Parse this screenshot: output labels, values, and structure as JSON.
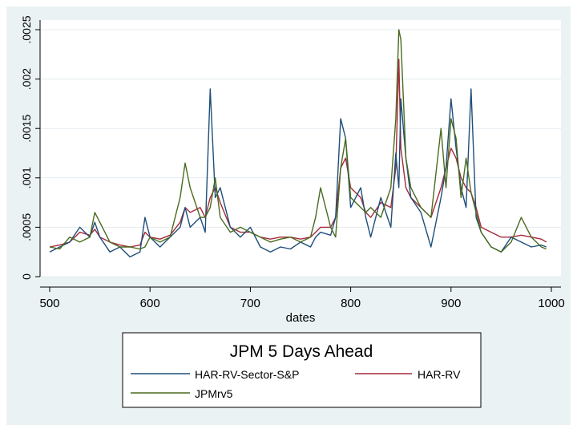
{
  "chart_data": {
    "type": "line",
    "title": "JPM 5 Days Ahead",
    "xlabel": "dates",
    "ylabel": "",
    "xlim": [
      500,
      1000
    ],
    "ylim": [
      0,
      0.0025
    ],
    "x_ticks": [
      500,
      600,
      700,
      800,
      900,
      1000
    ],
    "x_tick_labels": [
      "500",
      "600",
      "700",
      "800",
      "900",
      "1000"
    ],
    "y_ticks": [
      0,
      0.0005,
      0.001,
      0.0015,
      0.002,
      0.0025
    ],
    "y_tick_labels": [
      "0",
      ".0005",
      ".001",
      ".0015",
      ".002",
      ".0025"
    ],
    "grid": true,
    "legend_position": "bottom",
    "x": [
      500,
      510,
      520,
      530,
      540,
      545,
      550,
      560,
      570,
      580,
      590,
      595,
      600,
      610,
      620,
      630,
      635,
      640,
      650,
      655,
      660,
      665,
      670,
      680,
      690,
      700,
      710,
      720,
      730,
      740,
      750,
      760,
      765,
      770,
      780,
      785,
      790,
      795,
      800,
      810,
      815,
      820,
      830,
      840,
      845,
      848,
      850,
      855,
      860,
      870,
      880,
      890,
      895,
      900,
      905,
      910,
      915,
      920,
      925,
      930,
      940,
      950,
      960,
      970,
      980,
      990,
      995
    ],
    "series": [
      {
        "name": "HAR-RV-Sector-S&P",
        "color": "#1f4e79",
        "values": [
          0.00025,
          0.0003,
          0.00035,
          0.0005,
          0.0004,
          0.00055,
          0.0004,
          0.00025,
          0.0003,
          0.0002,
          0.00025,
          0.0006,
          0.0004,
          0.0003,
          0.0004,
          0.0005,
          0.0007,
          0.0005,
          0.0006,
          0.00045,
          0.0019,
          0.0008,
          0.0009,
          0.0005,
          0.0004,
          0.0005,
          0.0003,
          0.00025,
          0.0003,
          0.00028,
          0.00035,
          0.0003,
          0.0004,
          0.00045,
          0.00042,
          0.0006,
          0.0016,
          0.0014,
          0.0007,
          0.0009,
          0.0006,
          0.0004,
          0.0008,
          0.0005,
          0.00125,
          0.0009,
          0.0018,
          0.0012,
          0.0008,
          0.00065,
          0.0003,
          0.0008,
          0.0011,
          0.0018,
          0.0013,
          0.0009,
          0.0007,
          0.0019,
          0.0006,
          0.00045,
          0.0003,
          0.00025,
          0.0004,
          0.00035,
          0.0003,
          0.00032,
          0.0003
        ]
      },
      {
        "name": "HAR-RV",
        "color": "#a52a3a",
        "values": [
          0.0003,
          0.00032,
          0.00035,
          0.00045,
          0.00042,
          0.00048,
          0.0004,
          0.00035,
          0.00032,
          0.0003,
          0.00032,
          0.00045,
          0.0004,
          0.00038,
          0.00042,
          0.00055,
          0.0007,
          0.00065,
          0.0007,
          0.0006,
          0.0008,
          0.0009,
          0.00075,
          0.0005,
          0.00045,
          0.00045,
          0.0004,
          0.00038,
          0.0004,
          0.0004,
          0.00038,
          0.0004,
          0.00045,
          0.0005,
          0.0005,
          0.0006,
          0.0011,
          0.0012,
          0.0009,
          0.0008,
          0.00065,
          0.0006,
          0.00075,
          0.0007,
          0.0011,
          0.0022,
          0.0013,
          0.0009,
          0.0008,
          0.0007,
          0.0006,
          0.0009,
          0.0011,
          0.0013,
          0.0012,
          0.001,
          0.0009,
          0.00085,
          0.0007,
          0.0005,
          0.00045,
          0.0004,
          0.0004,
          0.00042,
          0.0004,
          0.00038,
          0.00035
        ]
      },
      {
        "name": "JPMrv5",
        "color": "#4a6b1f",
        "values": [
          0.0003,
          0.00028,
          0.0004,
          0.00035,
          0.0004,
          0.00065,
          0.00055,
          0.00035,
          0.0003,
          0.0003,
          0.00028,
          0.0003,
          0.0004,
          0.00035,
          0.0004,
          0.0008,
          0.00115,
          0.0009,
          0.0006,
          0.0006,
          0.0007,
          0.001,
          0.0006,
          0.00045,
          0.0005,
          0.00045,
          0.0004,
          0.00035,
          0.00038,
          0.0004,
          0.00035,
          0.0004,
          0.0006,
          0.0009,
          0.0005,
          0.0004,
          0.0011,
          0.0014,
          0.0008,
          0.0007,
          0.00065,
          0.0007,
          0.0006,
          0.0009,
          0.0016,
          0.0025,
          0.0024,
          0.0012,
          0.0009,
          0.0007,
          0.0006,
          0.0015,
          0.0009,
          0.0016,
          0.0014,
          0.0008,
          0.0012,
          0.00085,
          0.00065,
          0.00045,
          0.0003,
          0.00025,
          0.00035,
          0.0006,
          0.0004,
          0.0003,
          0.00028
        ]
      }
    ]
  }
}
